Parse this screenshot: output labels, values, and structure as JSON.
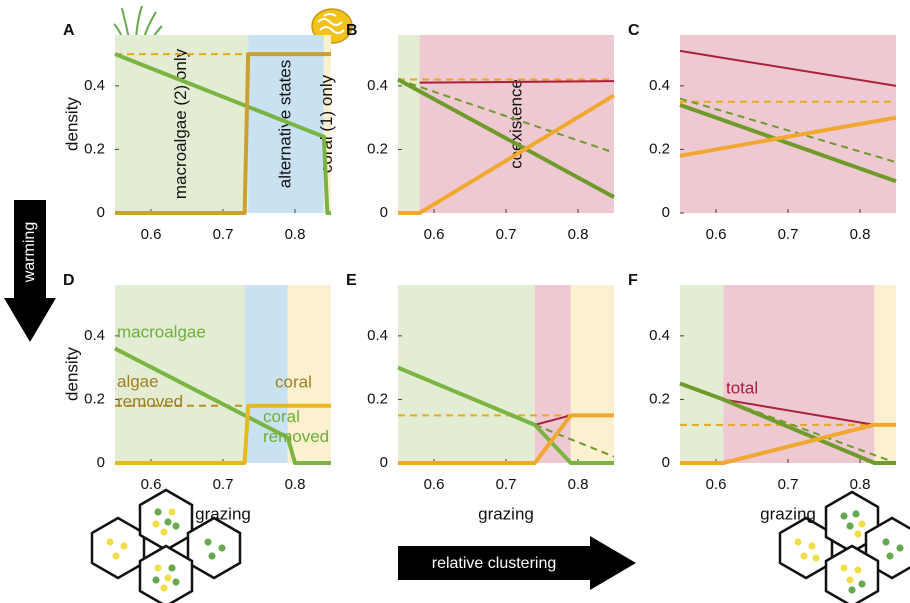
{
  "arrows": {
    "warming": "warming",
    "clustering": "relative clustering"
  },
  "chart_data": [
    {
      "type": "line",
      "panel": "A",
      "ylabel": "density",
      "xlim": [
        0.55,
        0.85
      ],
      "ylim": [
        0,
        0.56
      ],
      "xticks": [
        0.6,
        0.7,
        0.8
      ],
      "yticks": [
        0,
        0.2,
        0.4
      ],
      "regions": [
        {
          "from": 0.55,
          "to": 0.735,
          "color": "#e2edd3",
          "label": "macroalgae (2) only"
        },
        {
          "from": 0.735,
          "to": 0.84,
          "color": "#c9e2f2",
          "label": "alternative states"
        },
        {
          "from": 0.84,
          "to": 0.85,
          "color": "#fbf0d0",
          "label": "coral (1) only"
        }
      ],
      "series": [
        {
          "color": "#e8a820",
          "dash": true,
          "x": [
            0.55,
            0.85
          ],
          "values": [
            0.5,
            0.5
          ]
        },
        {
          "color": "#7ab443",
          "x": [
            0.55,
            0.84,
            0.845,
            0.85
          ],
          "values": [
            0.5,
            0.24,
            0,
            0
          ]
        },
        {
          "color": "#caa030",
          "x": [
            0.55,
            0.73,
            0.735,
            0.85
          ],
          "values": [
            0,
            0,
            0.5,
            0.5
          ]
        }
      ]
    },
    {
      "type": "line",
      "panel": "B",
      "xlim": [
        0.55,
        0.85
      ],
      "ylim": [
        0,
        0.56
      ],
      "xticks": [
        0.6,
        0.7,
        0.8
      ],
      "yticks": [
        0,
        0.2,
        0.4
      ],
      "regions": [
        {
          "from": 0.55,
          "to": 0.58,
          "color": "#e2edd3"
        },
        {
          "from": 0.58,
          "to": 0.85,
          "color": "#efc9d2",
          "label": "coexistence"
        }
      ],
      "series": [
        {
          "color": "#e8a820",
          "dash": true,
          "x": [
            0.55,
            0.85
          ],
          "values": [
            0.42,
            0.42
          ]
        },
        {
          "color": "#6f9b2c",
          "dash": true,
          "x": [
            0.55,
            0.85
          ],
          "values": [
            0.42,
            0.19
          ]
        },
        {
          "color": "#a8203a",
          "x": [
            0.58,
            0.85
          ],
          "values": [
            0.41,
            0.415
          ]
        },
        {
          "color": "#6f9b2c",
          "x": [
            0.55,
            0.85
          ],
          "values": [
            0.42,
            0.05
          ]
        },
        {
          "color": "#f0a830",
          "x": [
            0.55,
            0.58,
            0.85
          ],
          "values": [
            0,
            0,
            0.37
          ]
        }
      ]
    },
    {
      "type": "line",
      "panel": "C",
      "xlim": [
        0.55,
        0.85
      ],
      "ylim": [
        0,
        0.56
      ],
      "xticks": [
        0.6,
        0.7,
        0.8
      ],
      "yticks": [
        0,
        0.2,
        0.4
      ],
      "regions": [
        {
          "from": 0.55,
          "to": 0.85,
          "color": "#efc9d2"
        }
      ],
      "series": [
        {
          "color": "#e8a820",
          "dash": true,
          "x": [
            0.55,
            0.85
          ],
          "values": [
            0.35,
            0.35
          ]
        },
        {
          "color": "#6f9b2c",
          "dash": true,
          "x": [
            0.55,
            0.85
          ],
          "values": [
            0.36,
            0.16
          ]
        },
        {
          "color": "#a8203a",
          "x": [
            0.55,
            0.85
          ],
          "values": [
            0.51,
            0.4
          ]
        },
        {
          "color": "#6f9b2c",
          "x": [
            0.55,
            0.85
          ],
          "values": [
            0.34,
            0.1
          ]
        },
        {
          "color": "#f0a830",
          "x": [
            0.55,
            0.85
          ],
          "values": [
            0.18,
            0.3
          ]
        }
      ]
    },
    {
      "type": "line",
      "panel": "D",
      "ylabel": "density",
      "xlabel": "grazing",
      "xlim": [
        0.55,
        0.85
      ],
      "ylim": [
        0,
        0.56
      ],
      "xticks": [
        0.6,
        0.7,
        0.8
      ],
      "yticks": [
        0,
        0.2,
        0.4
      ],
      "regions": [
        {
          "from": 0.55,
          "to": 0.73,
          "color": "#e2edd3"
        },
        {
          "from": 0.73,
          "to": 0.79,
          "color": "#c9e2f2"
        },
        {
          "from": 0.79,
          "to": 0.85,
          "color": "#fbf0d0"
        }
      ],
      "series": [
        {
          "name": "algae removed",
          "color": "#b8902a",
          "dash": true,
          "x": [
            0.55,
            0.73
          ],
          "values": [
            0.18,
            0.18
          ]
        },
        {
          "name": "coral removed",
          "color": "#7ab443",
          "dash": true,
          "x": [
            0.55,
            0.79
          ],
          "values": [
            0.36,
            0.08
          ]
        },
        {
          "name": "macroalgae",
          "color": "#7ab443",
          "x": [
            0.55,
            0.79,
            0.8,
            0.85
          ],
          "values": [
            0.36,
            0.08,
            0,
            0
          ]
        },
        {
          "name": "coral",
          "color": "#e8b820",
          "x": [
            0.55,
            0.73,
            0.735,
            0.85
          ],
          "values": [
            0,
            0,
            0.18,
            0.18
          ]
        }
      ]
    },
    {
      "type": "line",
      "panel": "E",
      "xlabel": "grazing",
      "xlim": [
        0.55,
        0.85
      ],
      "ylim": [
        0,
        0.56
      ],
      "xticks": [
        0.6,
        0.7,
        0.8
      ],
      "yticks": [
        0,
        0.2,
        0.4
      ],
      "regions": [
        {
          "from": 0.55,
          "to": 0.74,
          "color": "#e2edd3"
        },
        {
          "from": 0.74,
          "to": 0.79,
          "color": "#efc9d2"
        },
        {
          "from": 0.79,
          "to": 0.85,
          "color": "#fbf0d0"
        }
      ],
      "series": [
        {
          "color": "#e8a820",
          "dash": true,
          "x": [
            0.55,
            0.85
          ],
          "values": [
            0.15,
            0.15
          ]
        },
        {
          "color": "#6f9b2c",
          "dash": true,
          "x": [
            0.74,
            0.85
          ],
          "values": [
            0.12,
            0.02
          ]
        },
        {
          "color": "#a8203a",
          "x": [
            0.74,
            0.79
          ],
          "values": [
            0.12,
            0.15
          ]
        },
        {
          "color": "#7ab443",
          "x": [
            0.55,
            0.74,
            0.79,
            0.85
          ],
          "values": [
            0.3,
            0.12,
            0,
            0
          ]
        },
        {
          "color": "#f0a830",
          "x": [
            0.55,
            0.74,
            0.79,
            0.85
          ],
          "values": [
            0,
            0,
            0.15,
            0.15
          ]
        }
      ]
    },
    {
      "type": "line",
      "panel": "F",
      "xlabel": "grazing",
      "xlim": [
        0.55,
        0.85
      ],
      "ylim": [
        0,
        0.56
      ],
      "xticks": [
        0.6,
        0.7,
        0.8
      ],
      "yticks": [
        0,
        0.2,
        0.4
      ],
      "regions": [
        {
          "from": 0.55,
          "to": 0.61,
          "color": "#e2edd3"
        },
        {
          "from": 0.61,
          "to": 0.82,
          "color": "#efc9d2"
        },
        {
          "from": 0.82,
          "to": 0.85,
          "color": "#fbf0d0"
        }
      ],
      "series": [
        {
          "color": "#e8a820",
          "dash": true,
          "x": [
            0.55,
            0.85
          ],
          "values": [
            0.12,
            0.12
          ]
        },
        {
          "color": "#6f9b2c",
          "dash": true,
          "x": [
            0.61,
            0.85
          ],
          "values": [
            0.2,
            0
          ]
        },
        {
          "name": "total",
          "color": "#a8203a",
          "x": [
            0.61,
            0.82
          ],
          "values": [
            0.2,
            0.12
          ]
        },
        {
          "color": "#6f9b2c",
          "x": [
            0.55,
            0.61,
            0.82,
            0.85
          ],
          "values": [
            0.25,
            0.2,
            0,
            0
          ]
        },
        {
          "color": "#f0a830",
          "x": [
            0.55,
            0.61,
            0.82,
            0.85
          ],
          "values": [
            0,
            0,
            0.12,
            0.12
          ]
        }
      ]
    }
  ]
}
